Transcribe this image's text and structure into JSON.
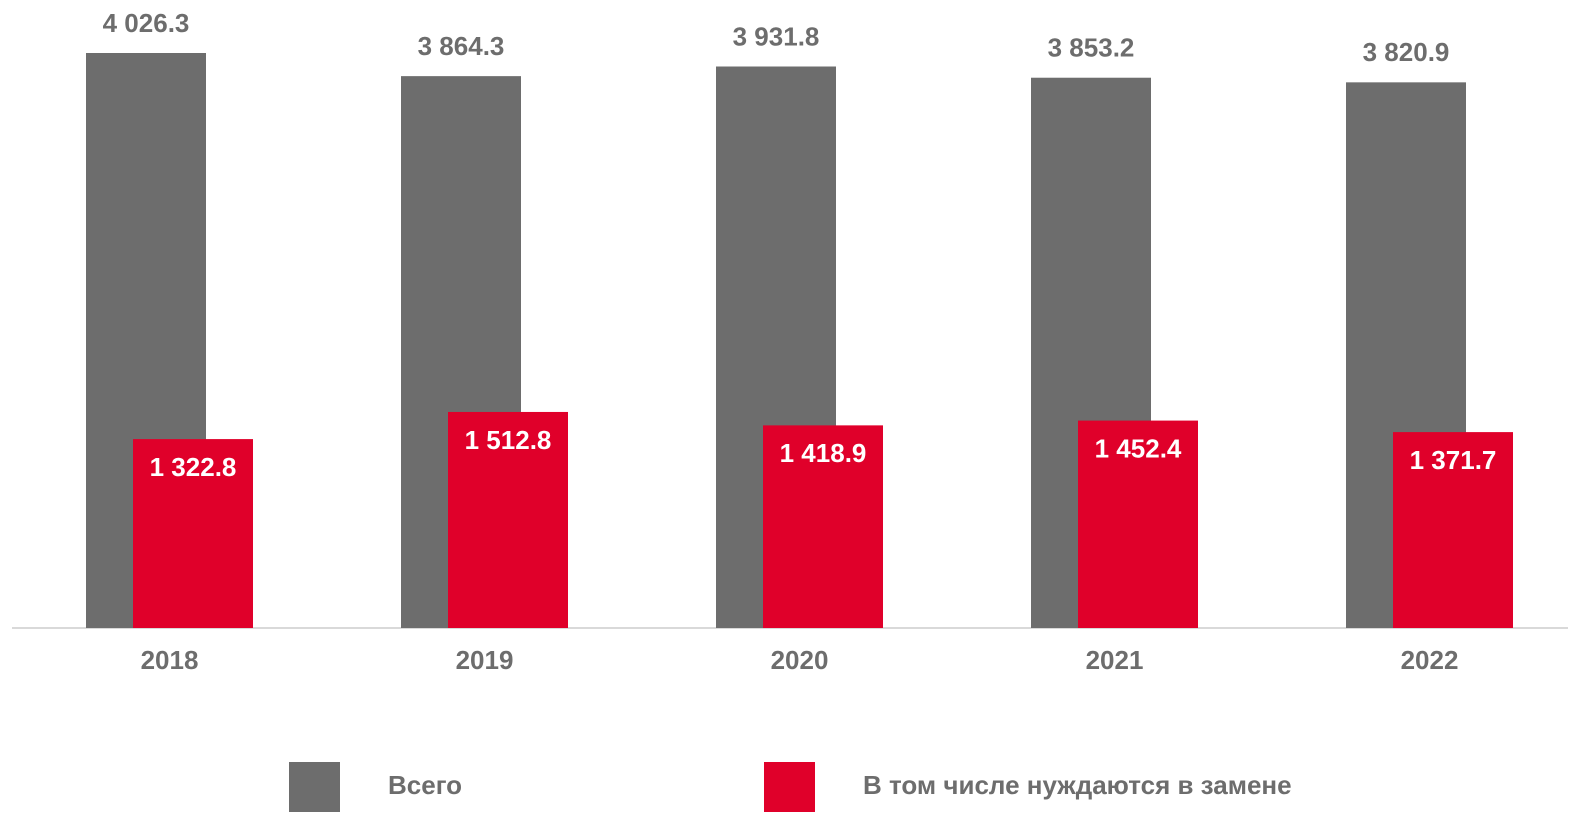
{
  "chart_data": {
    "type": "bar",
    "categories": [
      "2018",
      "2019",
      "2020",
      "2021",
      "2022"
    ],
    "series": [
      {
        "name": "Всего",
        "color": "#6d6d6d",
        "values": [
          4026.3,
          3864.3,
          3931.8,
          3853.2,
          3820.9
        ],
        "value_labels": [
          "4 026.3",
          "3 864.3",
          "3 931.8",
          "3 853.2",
          "3 820.9"
        ]
      },
      {
        "name": "В том числе нуждаются в замене",
        "color": "#e0002a",
        "values": [
          1322.8,
          1512.8,
          1418.9,
          1452.4,
          1371.7
        ],
        "value_labels": [
          "1 322.8",
          "1 512.8",
          "1 418.9",
          "1 452.4",
          "1 371.7"
        ]
      }
    ]
  }
}
